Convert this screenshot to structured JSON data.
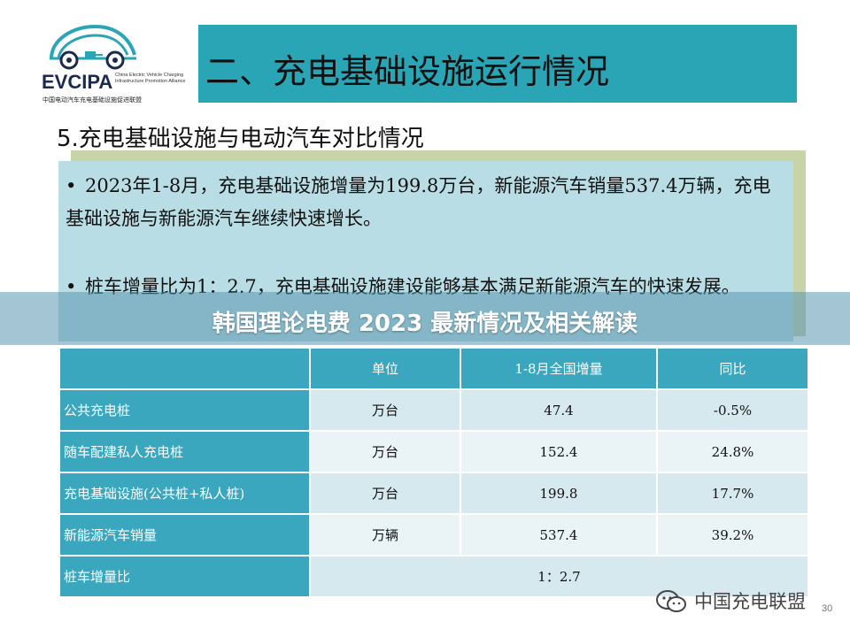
{
  "logo": {
    "name": "EVCIPA",
    "subtitle_en": "China Electric Vehicle Charging Infrastructure Promotion Alliance",
    "subtitle_cn": "中国电动汽车充电基础设施促进联盟"
  },
  "title": "二、充电基础设施运行情况",
  "section_heading": "5.充电基础设施与电动汽车对比情况",
  "bullets": [
    "2023年1-8月，充电基础设施增量为199.8万台，新能源汽车销量537.4万辆，充电基础设施与新能源汽车继续快速增长。",
    "桩车增量比为1：2.7，充电基础设施建设能够基本满足新能源汽车的快速发展。"
  ],
  "bullet_symbol": "•",
  "overlay_title": "韩国理论电费 2023 最新情况及相关解读",
  "table": {
    "headers": [
      "",
      "单位",
      "1-8月全国增量",
      "同比"
    ],
    "rows": [
      {
        "label": "公共充电桩",
        "unit": "万台",
        "increment": "47.4",
        "yoy": "-0.5%"
      },
      {
        "label": "随车配建私人充电桩",
        "unit": "万台",
        "increment": "152.4",
        "yoy": "24.8%"
      },
      {
        "label": "充电基础设施(公共桩+私人桩)",
        "unit": "万台",
        "increment": "199.8",
        "yoy": "17.7%"
      },
      {
        "label": "新能源汽车销量",
        "unit": "万辆",
        "increment": "537.4",
        "yoy": "39.2%"
      }
    ],
    "ratio_row": {
      "label": "桩车增量比",
      "value": "1：2.7"
    }
  },
  "watermark": "中国充电联盟",
  "page_number": "30",
  "colors": {
    "title_banner": "#2aa5b5",
    "panel": "#b8dde4",
    "table_header": "#3aa7bf",
    "logo_text": "#1d2a50"
  }
}
